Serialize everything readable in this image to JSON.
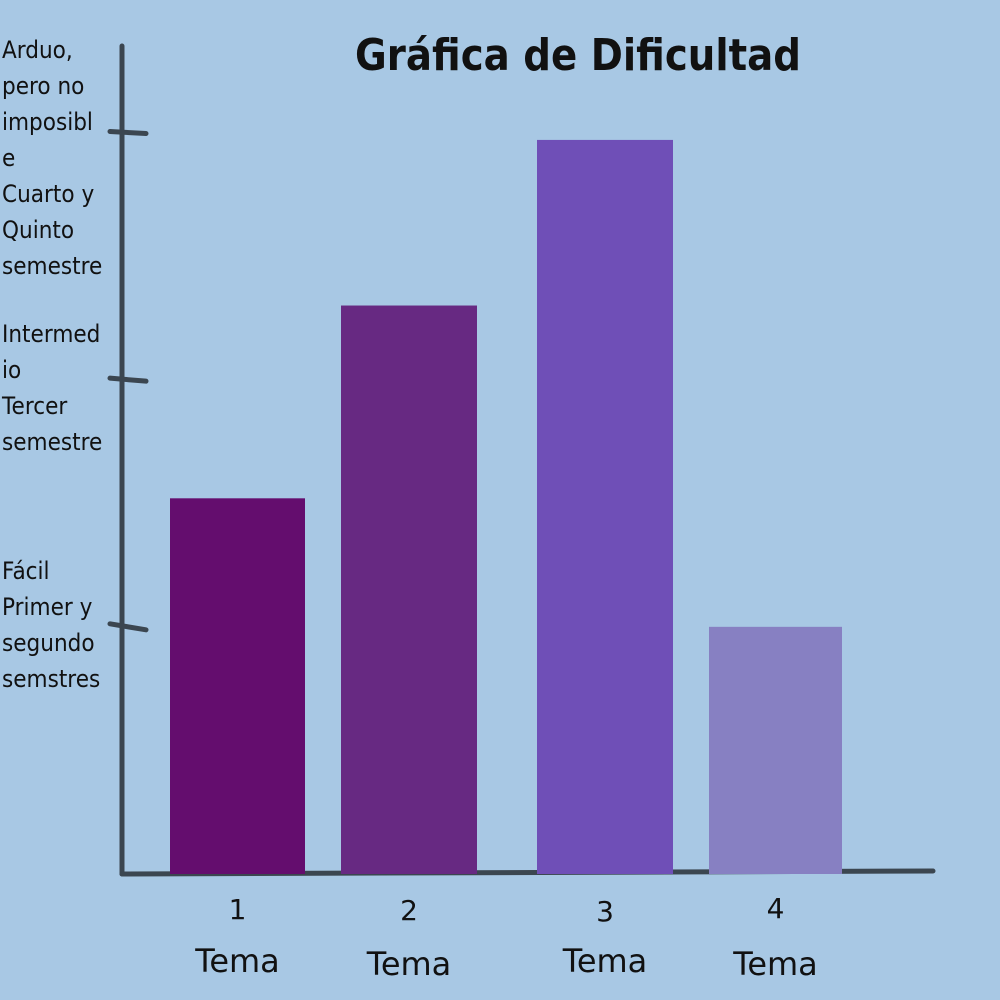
{
  "chart_data": {
    "type": "bar",
    "title": "Gráfica de Dificultad",
    "xlabel": "",
    "ylabel": "",
    "categories": [
      "1",
      "2",
      "3",
      "4"
    ],
    "category_word": "Tema",
    "values": [
      1.52,
      2.3,
      2.97,
      1.0
    ],
    "ylim": [
      0,
      3.35
    ],
    "grid": false,
    "legend": "none",
    "bar_colors": [
      "#640d6e",
      "#672982",
      "#6f4fb7",
      "#8780c2"
    ],
    "y_ticks": [
      {
        "value": 1,
        "lines": [
          "Fácil",
          "Primer y",
          "segundo",
          "semstres"
        ]
      },
      {
        "value": 2,
        "lines": [
          "Intermed",
          "io",
          "Tercer",
          "semestre"
        ]
      },
      {
        "value": 3,
        "lines": [
          "Arduo,",
          "pero no",
          "imposibl",
          "e",
          "Cuarto y",
          "Quinto",
          "semestre"
        ]
      }
    ]
  }
}
